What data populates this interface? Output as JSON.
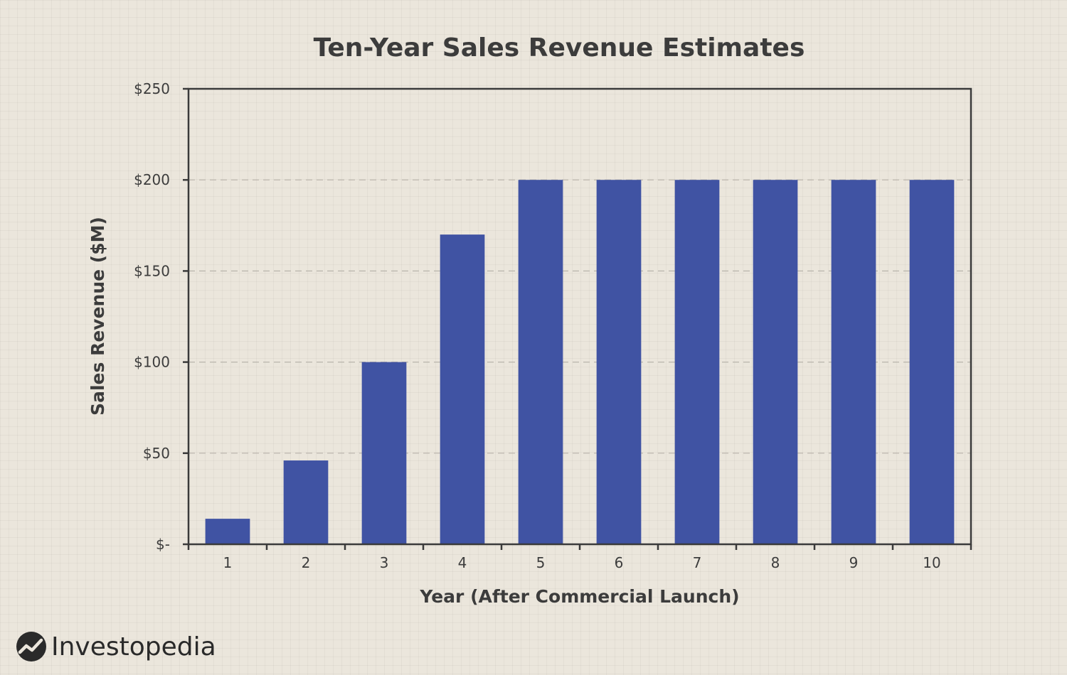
{
  "chart_data": {
    "type": "bar",
    "title": "Ten-Year Sales Revenue Estimates",
    "xlabel": "Year (After Commercial Launch)",
    "ylabel": "Sales Revenue ($M)",
    "categories": [
      "1",
      "2",
      "3",
      "4",
      "5",
      "6",
      "7",
      "8",
      "9",
      "10"
    ],
    "values": [
      14,
      46,
      100,
      170,
      200,
      200,
      200,
      200,
      200,
      200
    ],
    "ylim": [
      0,
      250
    ],
    "y_ticks": [
      0,
      50,
      100,
      150,
      200,
      250
    ],
    "y_tick_labels": [
      "$-",
      "$50",
      "$100",
      "$150",
      "$200",
      "$250"
    ],
    "grid": "horizontal dashed",
    "bar_color": "#4053a3"
  },
  "brand": {
    "name": "Investopedia",
    "icon": "investopedia-logo-icon"
  }
}
